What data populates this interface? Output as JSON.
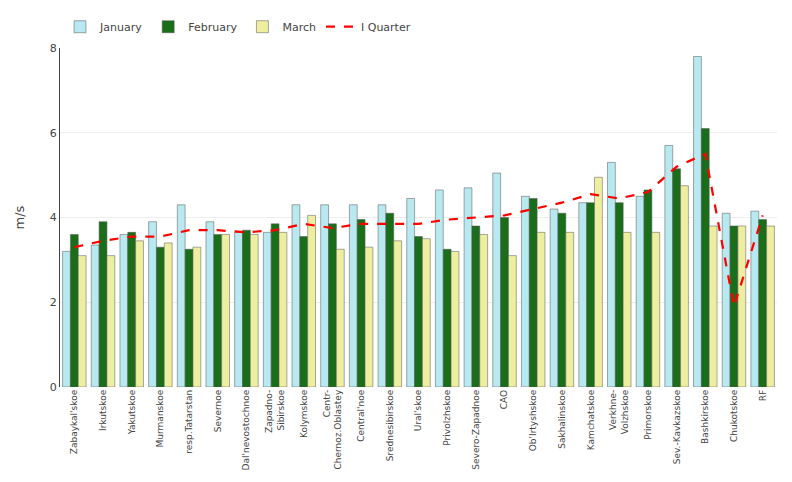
{
  "chart_data": {
    "type": "bar",
    "categories": [
      "Zabaykal'skoe",
      "Irkutskoe",
      "Yakutskoe",
      "Murmanskoe",
      "resp.Tatarstan",
      "Severnoe",
      "Dal'nevostochnoe",
      "Zapadno-\nSibirskoe",
      "Kolymskoe",
      "Centr-\nChernoz.Oblastey",
      "Central'noe",
      "Srednesibirskoe",
      "Ural'skoe",
      "Privolzhskoe",
      "Severo-Zapadnoe",
      "CAO",
      "Ob'Irtyshskoe",
      "Sakhalinskoe",
      "Kamchatskoe",
      "Verkhne-\nVolzhskoe",
      "Primorskoe",
      "Sev.-Kavkazskoe",
      "Bashkirskoe",
      "Chukotskoe",
      "RF"
    ],
    "series": [
      {
        "name": "January",
        "type": "bar",
        "color": "#b8e8f0",
        "values": [
          3.2,
          3.35,
          3.6,
          3.9,
          4.3,
          3.9,
          3.65,
          3.65,
          4.3,
          4.3,
          4.3,
          4.3,
          4.45,
          4.65,
          4.7,
          5.05,
          4.5,
          4.2,
          4.35,
          5.3,
          4.5,
          5.7,
          7.8,
          4.1,
          4.15
        ]
      },
      {
        "name": "February",
        "type": "bar",
        "color": "#1a6e1a",
        "values": [
          3.6,
          3.9,
          3.65,
          3.3,
          3.25,
          3.6,
          3.7,
          3.85,
          3.55,
          3.85,
          3.95,
          4.1,
          3.55,
          3.25,
          3.8,
          4.0,
          4.45,
          4.1,
          4.35,
          4.35,
          4.65,
          5.15,
          6.1,
          3.8,
          3.95
        ]
      },
      {
        "name": "March",
        "type": "bar",
        "color": "#eeeea0",
        "values": [
          3.1,
          3.1,
          3.45,
          3.4,
          3.3,
          3.6,
          3.6,
          3.65,
          4.05,
          3.25,
          3.3,
          3.45,
          3.5,
          3.2,
          3.6,
          3.1,
          3.65,
          3.65,
          4.95,
          3.65,
          3.65,
          4.75,
          3.8,
          3.8,
          3.8
        ]
      },
      {
        "name": "I Quarter",
        "type": "line",
        "line_style": "dashed",
        "color": "#ff0000",
        "values": [
          3.3,
          3.45,
          3.55,
          3.55,
          3.7,
          3.7,
          3.65,
          3.7,
          3.85,
          3.75,
          3.85,
          3.85,
          3.85,
          3.95,
          4.0,
          4.05,
          4.2,
          4.35,
          4.55,
          4.45,
          4.6,
          5.2,
          5.5,
          1.9,
          4.05
        ]
      }
    ],
    "ylabel": "m/s",
    "ylim": [
      0,
      8
    ],
    "yticks": [
      0,
      2,
      4,
      6,
      8
    ],
    "grid": true,
    "legend": "top"
  }
}
